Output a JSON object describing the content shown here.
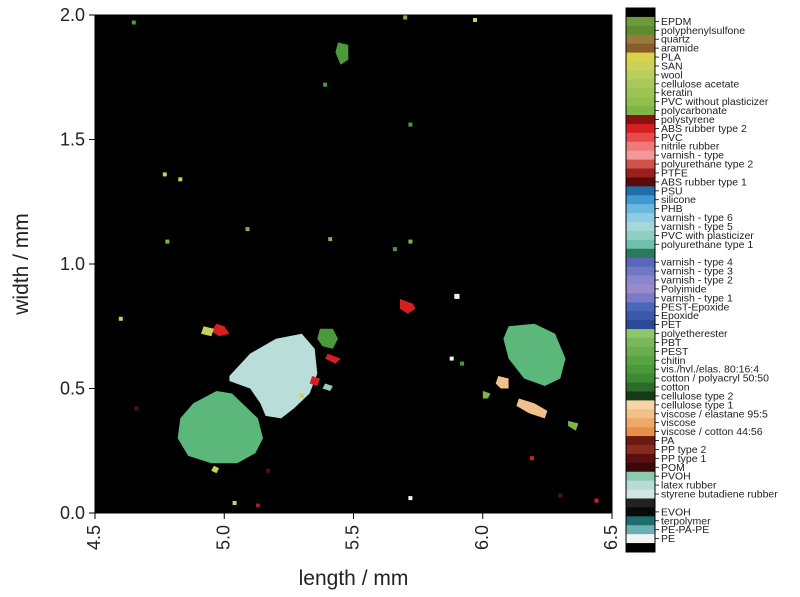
{
  "chart_data": {
    "type": "heatmap",
    "xlabel": "length / mm",
    "ylabel": "width / mm",
    "xlim": [
      4.5,
      6.5
    ],
    "ylim": [
      0.0,
      2.0
    ],
    "x_ticks": [
      "4.5",
      "5.0",
      "5.5",
      "6.0",
      "6.5"
    ],
    "y_ticks": [
      "0.0",
      "0.5",
      "1.0",
      "1.5",
      "2.0"
    ],
    "background_color": "#000000",
    "legend": {
      "placement": "right",
      "entries": [
        {
          "label": "",
          "color": "#000000"
        },
        {
          "label": "EPDM",
          "color": "#6f9a3a"
        },
        {
          "label": "polyphenylsulfone",
          "color": "#5c8b30"
        },
        {
          "label": "quartz",
          "color": "#9a7a3a"
        },
        {
          "label": "aramide",
          "color": "#8a5a2a"
        },
        {
          "label": "PLA",
          "color": "#d9d24a"
        },
        {
          "label": "SAN",
          "color": "#c9d15a"
        },
        {
          "label": "wool",
          "color": "#b8cf5e"
        },
        {
          "label": "cellulose acetate",
          "color": "#a9c85a"
        },
        {
          "label": "keratin",
          "color": "#9cc455"
        },
        {
          "label": "PVC without plasticizer",
          "color": "#8fbf4e"
        },
        {
          "label": "polycarbonate",
          "color": "#7fb447"
        },
        {
          "label": "polystyrene",
          "color": "#8a1010"
        },
        {
          "label": "ABS rubber type 2",
          "color": "#d42020"
        },
        {
          "label": "PVC",
          "color": "#e84a4a"
        },
        {
          "label": "nitrile rubber",
          "color": "#ee7a7a"
        },
        {
          "label": "varnish - type",
          "color": "#f29a9a"
        },
        {
          "label": "polyurethane type 2",
          "color": "#d0504a"
        },
        {
          "label": "PTFE",
          "color": "#9a2020"
        },
        {
          "label": "ABS rubber type 1",
          "color": "#5a0a0a"
        },
        {
          "label": "PSU",
          "color": "#1e6ea8"
        },
        {
          "label": "silicone",
          "color": "#3e9ad0"
        },
        {
          "label": "PHB",
          "color": "#6ab8e0"
        },
        {
          "label": "varnish - type 6",
          "color": "#8ccce6"
        },
        {
          "label": "varnish - type 5",
          "color": "#a6d6da"
        },
        {
          "label": "PVC with plasticizer",
          "color": "#8fcfc4"
        },
        {
          "label": "polyurethane type 1",
          "color": "#6fbfae"
        },
        {
          "label": "",
          "color": "#2a7a5a"
        },
        {
          "label": "varnish - type 4",
          "color": "#5a66b8"
        },
        {
          "label": "varnish - type 3",
          "color": "#6f78c4"
        },
        {
          "label": "varnish - type 2",
          "color": "#8a86cc"
        },
        {
          "label": "Polyimide",
          "color": "#9a8acc"
        },
        {
          "label": "varnish - type 1",
          "color": "#7a7ac8"
        },
        {
          "label": "PEST-Epoxide",
          "color": "#4a68b8"
        },
        {
          "label": "Epoxide",
          "color": "#3a58a8"
        },
        {
          "label": "PET",
          "color": "#2a4a98"
        },
        {
          "label": "polyetherester",
          "color": "#8ec46a"
        },
        {
          "label": "PBT",
          "color": "#7ab85a"
        },
        {
          "label": "PEST",
          "color": "#6aae4e"
        },
        {
          "label": "chitin",
          "color": "#58a444"
        },
        {
          "label": "vis./hvl./elas. 80:16:4",
          "color": "#4a9a3c"
        },
        {
          "label": "cotton / polyacryl 50:50",
          "color": "#3c8a34"
        },
        {
          "label": "cotton",
          "color": "#2c6c28"
        },
        {
          "label": "cellulose type 2",
          "color": "#163a18"
        },
        {
          "label": "cellulose type 1",
          "color": "#f6d6a6"
        },
        {
          "label": "viscose / elastane 95:5",
          "color": "#f2c08a"
        },
        {
          "label": "viscose",
          "color": "#eea86a"
        },
        {
          "label": "viscose / cotton 44:56",
          "color": "#e89048"
        },
        {
          "label": "PA",
          "color": "#6a1a10"
        },
        {
          "label": "PP type 2",
          "color": "#8a2a1a"
        },
        {
          "label": "PP type 1",
          "color": "#5a1010"
        },
        {
          "label": "POM",
          "color": "#3a0808"
        },
        {
          "label": "PVOH",
          "color": "#8acab0"
        },
        {
          "label": "latex rubber",
          "color": "#b8dcd4"
        },
        {
          "label": "styrene butadiene rubber",
          "color": "#d0e6e0"
        },
        {
          "label": "",
          "color": "#222222"
        },
        {
          "label": "EVOH",
          "color": "#0a0a0a"
        },
        {
          "label": "terpolymer",
          "color": "#1e6e6e"
        },
        {
          "label": "PE-PA-PE",
          "color": "#6ab0b4"
        },
        {
          "label": "PE",
          "color": "#f2f2f2"
        },
        {
          "label": "",
          "color": "#000000"
        }
      ]
    },
    "particles": [
      {
        "material": "PVOH",
        "color": "#5cb87a",
        "x": [
          4.88,
          4.97,
          5.03,
          5.08,
          5.13,
          5.15,
          5.12,
          5.05,
          4.95,
          4.86,
          4.82,
          4.83
        ],
        "y": [
          0.44,
          0.49,
          0.48,
          0.43,
          0.38,
          0.3,
          0.24,
          0.2,
          0.2,
          0.23,
          0.3,
          0.38
        ]
      },
      {
        "material": "latex rubber",
        "color": "#b9ddd8",
        "x": [
          5.02,
          5.1,
          5.2,
          5.3,
          5.35,
          5.36,
          5.33,
          5.27,
          5.22,
          5.16,
          5.14,
          5.1,
          5.02
        ],
        "y": [
          0.55,
          0.64,
          0.7,
          0.72,
          0.66,
          0.56,
          0.48,
          0.42,
          0.38,
          0.39,
          0.44,
          0.5,
          0.53
        ]
      },
      {
        "material": "PVOH",
        "color": "#5cb87a",
        "x": [
          6.1,
          6.2,
          6.28,
          6.32,
          6.3,
          6.24,
          6.16,
          6.1,
          6.08
        ],
        "y": [
          0.75,
          0.76,
          0.72,
          0.62,
          0.54,
          0.51,
          0.54,
          0.62,
          0.7
        ]
      },
      {
        "material": "cotton / polyacryl 50:50",
        "color": "#4a9a3c",
        "x": [
          5.37,
          5.42,
          5.44,
          5.42,
          5.38,
          5.36
        ],
        "y": [
          0.74,
          0.74,
          0.7,
          0.66,
          0.67,
          0.7
        ]
      },
      {
        "material": "cotton / polyacryl 50:50",
        "color": "#4a9a3c",
        "x": [
          5.44,
          5.48,
          5.48,
          5.45,
          5.43
        ],
        "y": [
          1.89,
          1.88,
          1.82,
          1.8,
          1.85
        ]
      },
      {
        "material": "ABS rubber type 2",
        "color": "#d42020",
        "x": [
          4.97,
          5.0,
          5.02,
          4.98,
          4.95
        ],
        "y": [
          0.76,
          0.75,
          0.72,
          0.71,
          0.73
        ]
      },
      {
        "material": "ABS rubber type 2",
        "color": "#d42020",
        "x": [
          5.68,
          5.73,
          5.74,
          5.71,
          5.68
        ],
        "y": [
          0.86,
          0.84,
          0.82,
          0.8,
          0.82
        ]
      },
      {
        "material": "ABS rubber type 2",
        "color": "#d42020",
        "x": [
          5.4,
          5.45,
          5.43,
          5.39
        ],
        "y": [
          0.64,
          0.62,
          0.6,
          0.62
        ]
      },
      {
        "material": "ABS rubber type 2",
        "color": "#d42020",
        "x": [
          5.34,
          5.37,
          5.36,
          5.33
        ],
        "y": [
          0.55,
          0.54,
          0.51,
          0.52
        ]
      },
      {
        "material": "viscose / elastane 95:5",
        "color": "#f2c08a",
        "x": [
          6.14,
          6.2,
          6.25,
          6.24,
          6.18,
          6.13
        ],
        "y": [
          0.46,
          0.44,
          0.41,
          0.38,
          0.4,
          0.43
        ]
      },
      {
        "material": "viscose / elastane 95:5",
        "color": "#f2c08a",
        "x": [
          6.06,
          6.1,
          6.1,
          6.07,
          6.05
        ],
        "y": [
          0.55,
          0.54,
          0.5,
          0.5,
          0.52
        ]
      },
      {
        "material": "SAN",
        "color": "#c9d15a",
        "x": [
          4.92,
          4.96,
          4.95,
          4.91
        ],
        "y": [
          0.75,
          0.74,
          0.71,
          0.72
        ]
      },
      {
        "material": "polycarbonate",
        "color": "#7fb447",
        "x": [
          6.33,
          6.37,
          6.36,
          6.33
        ],
        "y": [
          0.37,
          0.36,
          0.33,
          0.35
        ]
      },
      {
        "material": "polycarbonate",
        "color": "#7fb447",
        "x": [
          6.0,
          6.03,
          6.02,
          6.0
        ],
        "y": [
          0.49,
          0.48,
          0.46,
          0.46
        ]
      },
      {
        "material": "PVC with plasticizer",
        "color": "#8fcfc4",
        "x": [
          5.39,
          5.42,
          5.41,
          5.38
        ],
        "y": [
          0.52,
          0.51,
          0.49,
          0.5
        ]
      },
      {
        "material": "SAN",
        "color": "#c9d15a",
        "x": [
          4.96,
          4.98,
          4.97,
          4.95
        ],
        "y": [
          0.19,
          0.18,
          0.16,
          0.17
        ]
      },
      {
        "material": "PE",
        "color": "#f2f2f2",
        "x": [
          5.89,
          5.91,
          5.91,
          5.89
        ],
        "y": [
          0.88,
          0.88,
          0.86,
          0.86
        ]
      }
    ],
    "specks": [
      {
        "x": 4.77,
        "y": 1.36,
        "color": "#c9d15a"
      },
      {
        "x": 4.83,
        "y": 1.34,
        "color": "#c9d15a"
      },
      {
        "x": 4.78,
        "y": 1.09,
        "color": "#7fb447"
      },
      {
        "x": 5.09,
        "y": 1.14,
        "color": "#7fb447"
      },
      {
        "x": 5.39,
        "y": 1.72,
        "color": "#4a9a3c"
      },
      {
        "x": 5.41,
        "y": 1.1,
        "color": "#7fb447"
      },
      {
        "x": 5.72,
        "y": 1.09,
        "color": "#7fb447"
      },
      {
        "x": 5.72,
        "y": 1.56,
        "color": "#4a9a3c"
      },
      {
        "x": 5.66,
        "y": 1.06,
        "color": "#4a9a3c"
      },
      {
        "x": 4.6,
        "y": 0.78,
        "color": "#c9d15a"
      },
      {
        "x": 5.3,
        "y": 0.47,
        "color": "#c9d15a"
      },
      {
        "x": 5.88,
        "y": 0.62,
        "color": "#f2f2f2"
      },
      {
        "x": 5.92,
        "y": 0.6,
        "color": "#4a9a3c"
      },
      {
        "x": 6.19,
        "y": 0.22,
        "color": "#d42020"
      },
      {
        "x": 6.44,
        "y": 0.05,
        "color": "#d42020"
      },
      {
        "x": 4.66,
        "y": 0.42,
        "color": "#5a1010"
      },
      {
        "x": 5.17,
        "y": 0.17,
        "color": "#5a1010"
      },
      {
        "x": 5.13,
        "y": 0.03,
        "color": "#8a2a1a"
      },
      {
        "x": 5.72,
        "y": 0.06,
        "color": "#f2f2f2"
      },
      {
        "x": 5.04,
        "y": 0.04,
        "color": "#c9d15a"
      },
      {
        "x": 6.3,
        "y": 0.07,
        "color": "#5a1010"
      },
      {
        "x": 4.65,
        "y": 1.97,
        "color": "#4a9a3c"
      },
      {
        "x": 5.97,
        "y": 1.98,
        "color": "#c9d15a"
      },
      {
        "x": 5.7,
        "y": 1.99,
        "color": "#7fb447"
      }
    ]
  }
}
